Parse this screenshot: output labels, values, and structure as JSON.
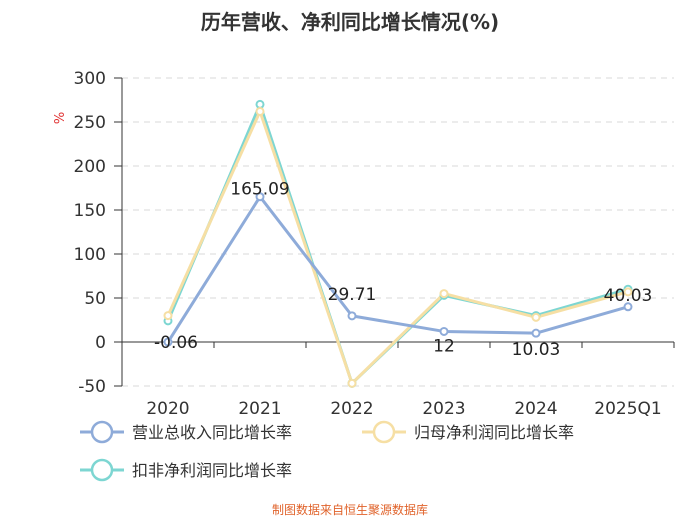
{
  "chart_data": {
    "type": "line",
    "title": "历年营收、净利同比增长情况(%)",
    "ylabel": "%",
    "categories": [
      "2020",
      "2021",
      "2022",
      "2023",
      "2024",
      "2025Q1"
    ],
    "ylim": [
      -50,
      300
    ],
    "yticks": [
      -50,
      0,
      50,
      100,
      150,
      200,
      250,
      300
    ],
    "grid": true,
    "legend_position": "bottom",
    "series": [
      {
        "name": "营业总收入同比增长率",
        "color": "#8eabd9",
        "values": [
          -0.06,
          165.09,
          29.71,
          12,
          10.03,
          40.03
        ],
        "labels": [
          "-0.06",
          "165.09",
          "29.71",
          "12",
          "10.03",
          "40.03"
        ]
      },
      {
        "name": "归母净利润同比增长率",
        "color": "#f6dfa4",
        "values": [
          30,
          262,
          -47,
          55,
          28,
          57
        ]
      },
      {
        "name": "扣非净利润同比增长率",
        "color": "#7dd6d2",
        "values": [
          24,
          270,
          -47,
          53,
          30,
          60
        ]
      }
    ]
  },
  "source": "制图数据来自恒生聚源数据库"
}
